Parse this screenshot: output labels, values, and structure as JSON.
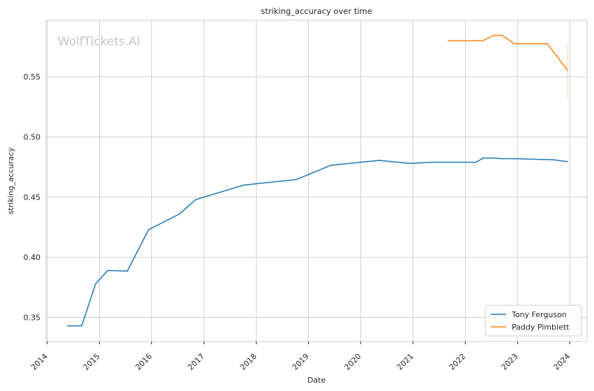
{
  "watermark": "WolfTickets.AI",
  "chart_data": {
    "type": "line",
    "title": "striking_accuracy over time",
    "xlabel": "Date",
    "ylabel": "striking_accuracy",
    "xlim": [
      "2013-12-24",
      "2024-05-01"
    ],
    "ylim": [
      0.33,
      0.597
    ],
    "grid": true,
    "legend_position": "bottom-right",
    "x_ticks": [
      "2014",
      "2015",
      "2016",
      "2017",
      "2018",
      "2019",
      "2020",
      "2021",
      "2022",
      "2023",
      "2024"
    ],
    "y_ticks": [
      0.35,
      0.4,
      0.45,
      0.5,
      0.55
    ],
    "y_tick_labels": [
      "0.35",
      "0.40",
      "0.45",
      "0.50",
      "0.55"
    ],
    "series": [
      {
        "name": "Tony Ferguson",
        "color": "#1f77b4",
        "points": [
          [
            "2014-05-24",
            0.343
          ],
          [
            "2014-08-30",
            0.343
          ],
          [
            "2014-12-06",
            0.378
          ],
          [
            "2015-02-28",
            0.389
          ],
          [
            "2015-07-15",
            0.3885
          ],
          [
            "2015-12-11",
            0.423
          ],
          [
            "2016-07-13",
            0.436
          ],
          [
            "2016-11-05",
            0.448
          ],
          [
            "2017-10-07",
            0.46
          ],
          [
            "2018-10-06",
            0.4645
          ],
          [
            "2019-06-08",
            0.4765
          ],
          [
            "2020-05-09",
            0.4805
          ],
          [
            "2020-12-12",
            0.478
          ],
          [
            "2021-05-15",
            0.479
          ],
          [
            "2022-03-19",
            0.479
          ],
          [
            "2022-05-07",
            0.4825
          ],
          [
            "2022-07-30",
            0.4825
          ],
          [
            "2022-08-30",
            0.482
          ],
          [
            "2022-12-10",
            0.482
          ],
          [
            "2023-09-09",
            0.481
          ],
          [
            "2023-12-16",
            0.4795
          ]
        ]
      },
      {
        "name": "Paddy Pimblett",
        "color": "#ff7f0e",
        "points": [
          [
            "2021-09-04",
            0.58
          ],
          [
            "2022-02-26",
            0.58
          ],
          [
            "2022-05-01",
            0.58
          ],
          [
            "2022-07-23",
            0.5845
          ],
          [
            "2022-09-15",
            0.5845
          ],
          [
            "2022-12-10",
            0.5775
          ],
          [
            "2023-07-29",
            0.5775
          ],
          [
            "2023-12-16",
            0.5555
          ]
        ],
        "error_bar": {
          "x": "2023-12-16",
          "low": 0.532,
          "high": 0.578
        }
      }
    ]
  }
}
